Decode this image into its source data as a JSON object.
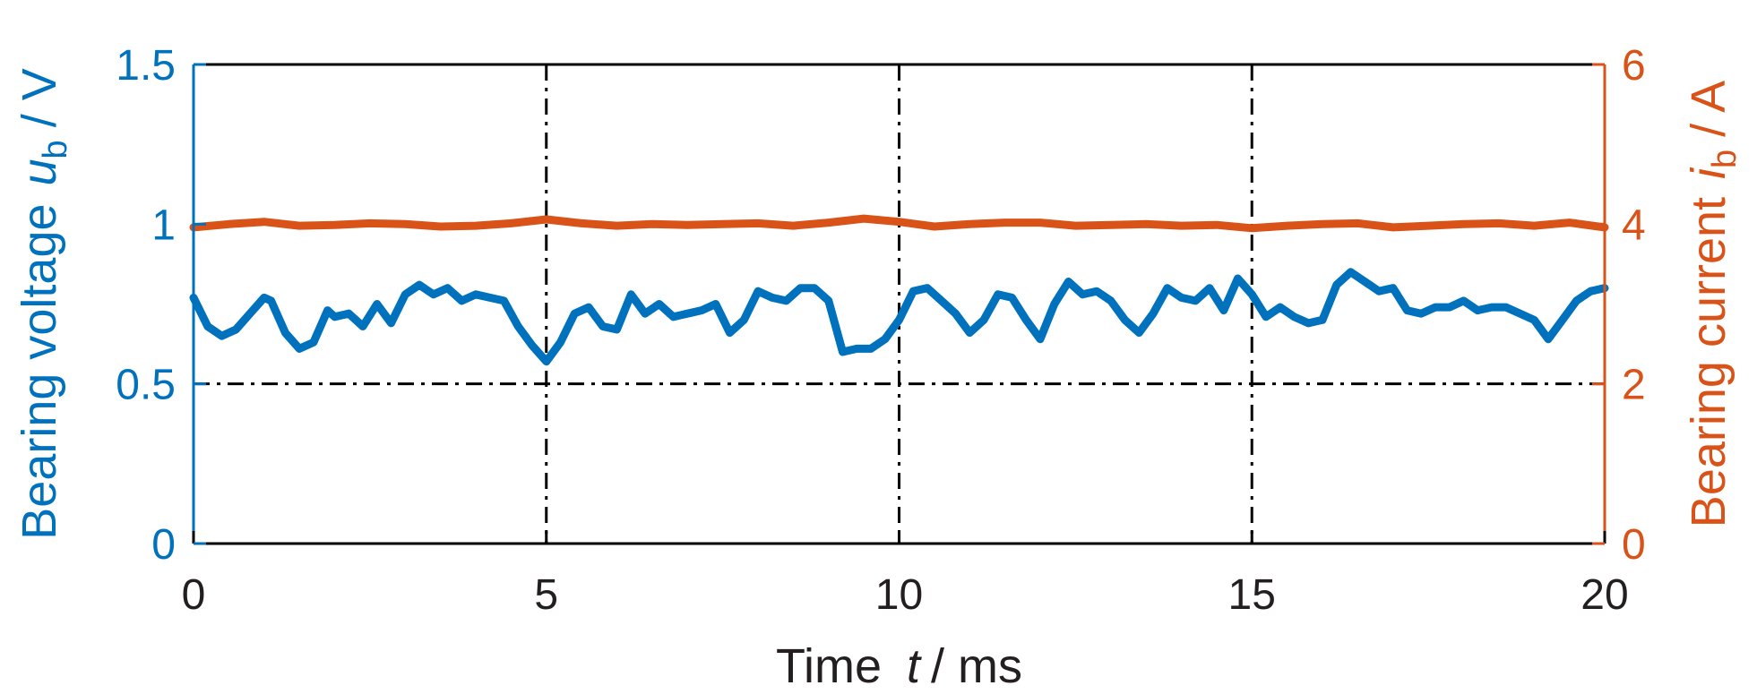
{
  "colors": {
    "voltage": "#0072BD",
    "current": "#D95319",
    "axis": "#000000",
    "grid": "#000000"
  },
  "chart_data": {
    "type": "line",
    "title": "",
    "xlabel": {
      "text": "Time",
      "symbol": "t",
      "unit": "/ ms"
    },
    "ylabel_left": {
      "text": "Bearing voltage",
      "symbol": "u",
      "subscript": "b",
      "unit": "/ V"
    },
    "ylabel_right": {
      "text": "Bearing current",
      "symbol": "i",
      "subscript": "b",
      "unit": "/ A"
    },
    "xlim": [
      0,
      20
    ],
    "ylim_left": [
      0,
      1.5
    ],
    "ylim_right": [
      0,
      6
    ],
    "xticks": [
      "0",
      "5",
      "10",
      "15",
      "20"
    ],
    "yticks_left": [
      "0",
      "0.5",
      "1",
      "1.5"
    ],
    "yticks_right": [
      "0",
      "2",
      "4",
      "6"
    ],
    "grid": "dash-dot at x=5, 10, 15 and left y=0.5",
    "series": [
      {
        "axis": "left",
        "x": [
          0,
          0.2,
          0.4,
          0.6,
          0.8,
          1.0,
          1.1,
          1.3,
          1.5,
          1.7,
          1.9,
          2.0,
          2.2,
          2.4,
          2.6,
          2.8,
          3.0,
          3.2,
          3.4,
          3.6,
          3.8,
          4.0,
          4.2,
          4.4,
          4.6,
          4.8,
          5.0,
          5.2,
          5.4,
          5.6,
          5.8,
          6.0,
          6.2,
          6.4,
          6.6,
          6.8,
          7.0,
          7.2,
          7.4,
          7.6,
          7.8,
          8.0,
          8.2,
          8.4,
          8.6,
          8.8,
          9.0,
          9.2,
          9.4,
          9.6,
          9.8,
          10.0,
          10.2,
          10.4,
          10.6,
          10.8,
          11.0,
          11.2,
          11.4,
          11.6,
          11.8,
          12.0,
          12.2,
          12.4,
          12.6,
          12.8,
          13.0,
          13.2,
          13.4,
          13.6,
          13.8,
          14.0,
          14.2,
          14.4,
          14.6,
          14.8,
          15.0,
          15.2,
          15.4,
          15.6,
          15.8,
          16.0,
          16.2,
          16.4,
          16.6,
          16.8,
          17.0,
          17.2,
          17.4,
          17.6,
          17.8,
          18.0,
          18.2,
          18.4,
          18.6,
          18.8,
          19.0,
          19.2,
          19.4,
          19.6,
          19.8,
          20.0
        ],
        "values": [
          0.77,
          0.68,
          0.65,
          0.67,
          0.72,
          0.77,
          0.76,
          0.66,
          0.61,
          0.63,
          0.73,
          0.71,
          0.72,
          0.68,
          0.75,
          0.69,
          0.78,
          0.81,
          0.78,
          0.8,
          0.76,
          0.78,
          0.77,
          0.76,
          0.68,
          0.62,
          0.57,
          0.63,
          0.72,
          0.74,
          0.68,
          0.67,
          0.78,
          0.72,
          0.75,
          0.71,
          0.72,
          0.73,
          0.75,
          0.66,
          0.7,
          0.79,
          0.77,
          0.76,
          0.8,
          0.8,
          0.76,
          0.6,
          0.61,
          0.61,
          0.64,
          0.7,
          0.79,
          0.8,
          0.76,
          0.72,
          0.66,
          0.7,
          0.78,
          0.77,
          0.7,
          0.64,
          0.75,
          0.82,
          0.78,
          0.79,
          0.76,
          0.7,
          0.66,
          0.72,
          0.8,
          0.77,
          0.76,
          0.8,
          0.73,
          0.83,
          0.78,
          0.71,
          0.74,
          0.71,
          0.69,
          0.7,
          0.81,
          0.85,
          0.82,
          0.79,
          0.8,
          0.73,
          0.72,
          0.74,
          0.74,
          0.76,
          0.73,
          0.74,
          0.74,
          0.72,
          0.7,
          0.64,
          0.7,
          0.76,
          0.79,
          0.8
        ]
      },
      {
        "axis": "right",
        "x": [
          0,
          0.5,
          1.0,
          1.5,
          2.0,
          2.5,
          3.0,
          3.5,
          4.0,
          4.5,
          5.0,
          5.5,
          6.0,
          6.5,
          7.0,
          7.5,
          8.0,
          8.5,
          9.0,
          9.5,
          10.0,
          10.5,
          11.0,
          11.5,
          12.0,
          12.5,
          13.0,
          13.5,
          14.0,
          14.5,
          15.0,
          15.5,
          16.0,
          16.5,
          17.0,
          17.5,
          18.0,
          18.5,
          19.0,
          19.5,
          20.0
        ],
        "values": [
          3.96,
          4.0,
          4.03,
          3.98,
          3.99,
          4.01,
          4.0,
          3.97,
          3.98,
          4.01,
          4.06,
          4.01,
          3.98,
          4.0,
          3.99,
          4.0,
          4.01,
          3.98,
          4.02,
          4.07,
          4.03,
          3.97,
          4.0,
          4.02,
          4.02,
          3.98,
          3.99,
          4.0,
          3.98,
          3.99,
          3.95,
          3.98,
          4.0,
          4.01,
          3.96,
          3.98,
          4.0,
          4.01,
          3.98,
          4.02,
          3.96
        ]
      }
    ]
  }
}
